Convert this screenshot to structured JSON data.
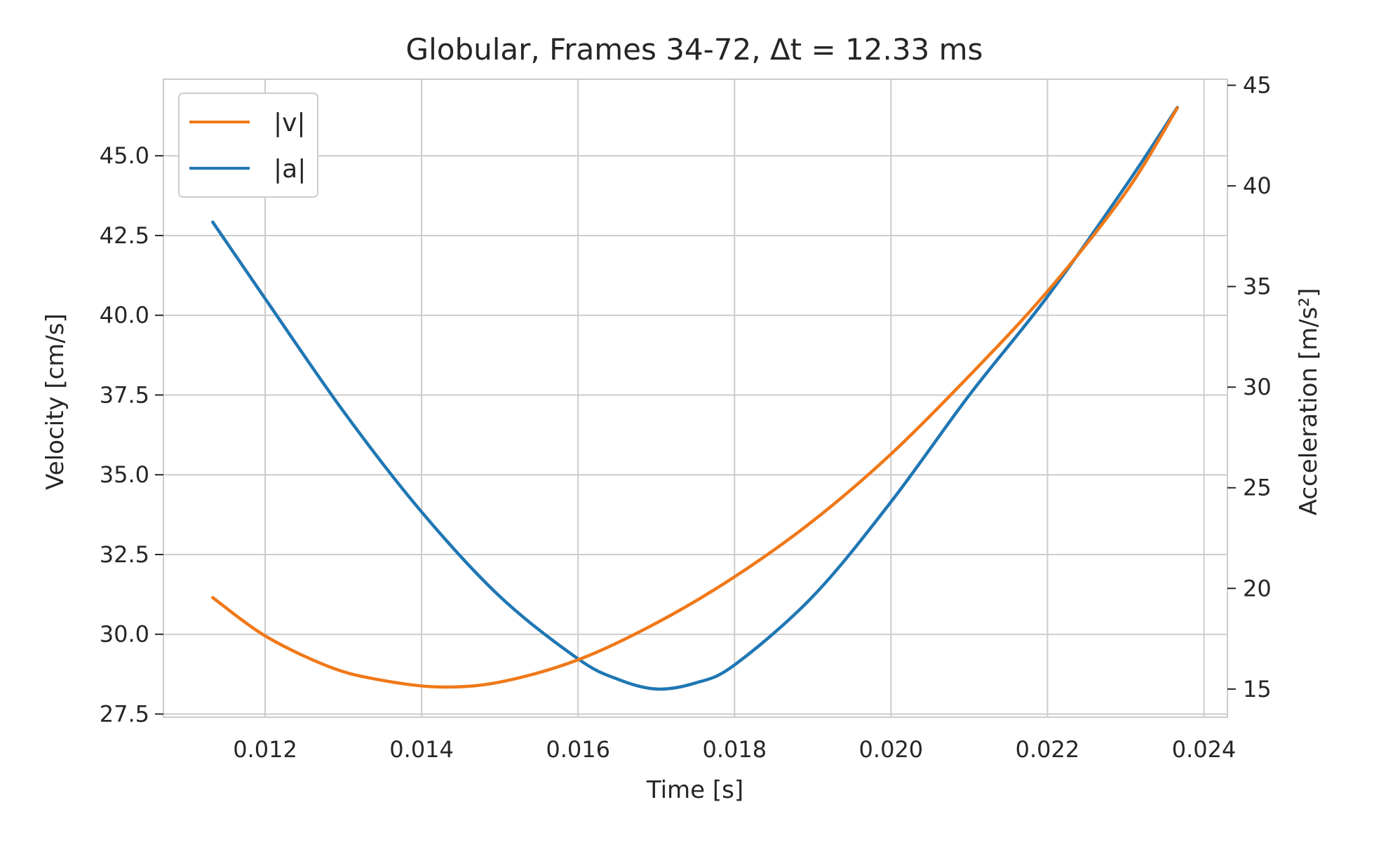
{
  "chart_data": {
    "type": "line",
    "title": "Globular, Frames 34-72, Δt = 12.33 ms",
    "xlabel": "Time [s]",
    "ylabel_left": "Velocity [cm/s]",
    "ylabel_right": "Acceleration [m/s²]",
    "xlim": [
      0.0107,
      0.0243
    ],
    "ylim_left": [
      27.4,
      47.4
    ],
    "ylim_right": [
      13.6,
      45.3
    ],
    "x_ticks": [
      "0.012",
      "0.014",
      "0.016",
      "0.018",
      "0.020",
      "0.022",
      "0.024"
    ],
    "y_left_ticks": [
      "27.5",
      "30.0",
      "32.5",
      "35.0",
      "37.5",
      "40.0",
      "42.5",
      "45.0"
    ],
    "y_right_ticks": [
      "15",
      "20",
      "25",
      "30",
      "35",
      "40",
      "45"
    ],
    "grid": true,
    "legend_placement": "top-left",
    "colors": {
      "v": "#f07817",
      "a": "#1f77b4"
    },
    "series": [
      {
        "name": "|v|",
        "axis": "left",
        "x": [
          0.01133,
          0.012,
          0.0128,
          0.0134,
          0.0142,
          0.015,
          0.016,
          0.017,
          0.018,
          0.019,
          0.02,
          0.021,
          0.022,
          0.023,
          0.02366
        ],
        "values": [
          31.15,
          29.95,
          29.0,
          28.6,
          28.35,
          28.5,
          29.2,
          30.35,
          31.8,
          33.55,
          35.65,
          38.1,
          40.75,
          43.85,
          46.5
        ]
      },
      {
        "name": "|a|",
        "axis": "right",
        "x": [
          0.01133,
          0.012,
          0.013,
          0.014,
          0.015,
          0.016,
          0.0165,
          0.017,
          0.0175,
          0.018,
          0.019,
          0.02,
          0.021,
          0.022,
          0.023,
          0.02366
        ],
        "values": [
          38.2,
          34.4,
          28.8,
          23.8,
          19.6,
          16.5,
          15.5,
          15.0,
          15.3,
          16.2,
          19.6,
          24.3,
          29.6,
          34.5,
          40.0,
          43.9
        ]
      }
    ]
  }
}
